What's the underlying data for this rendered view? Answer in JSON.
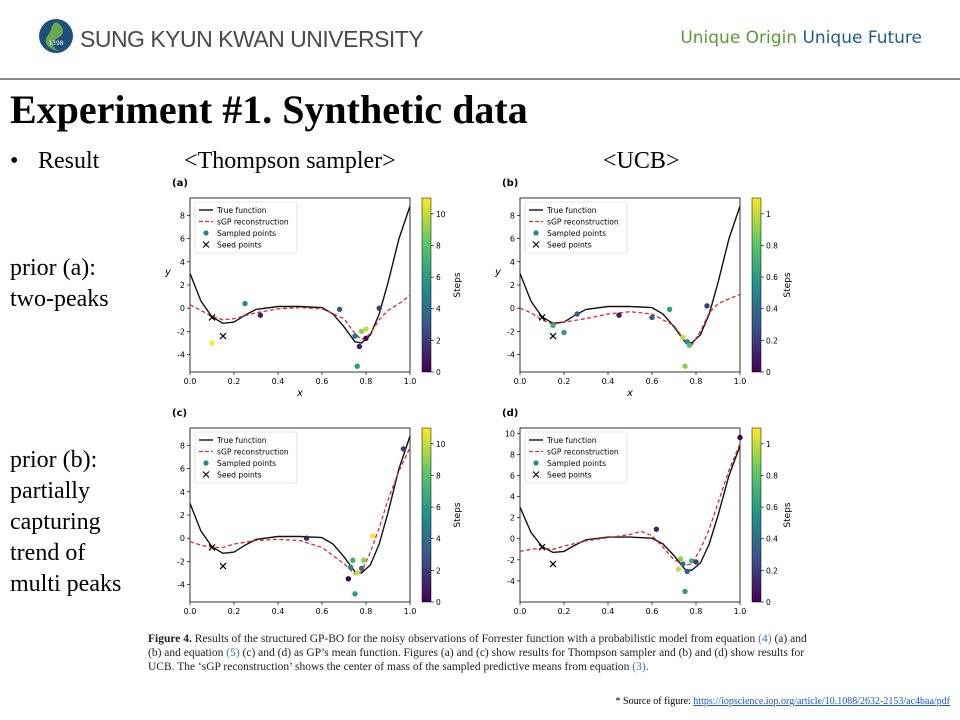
{
  "header": {
    "university": "SUNG KYUN KWAN UNIVERSITY",
    "logo_year": "1398",
    "slogan_1": "Unique Origin",
    "slogan_2": "Unique Future"
  },
  "title": "Experiment #1. Synthetic data",
  "bullet": "Result",
  "column_labels": {
    "left": "<Thompson sampler>",
    "right": "<UCB>"
  },
  "row_labels": {
    "a": [
      "prior (a):",
      "two-peaks"
    ],
    "b": [
      "prior (b):",
      "partially",
      "capturing",
      "trend of",
      "multi peaks"
    ]
  },
  "colors": {
    "true_fn": "#111111",
    "sgp": "#d03030",
    "seed": "#000000"
  },
  "chart_data": [
    {
      "type": "line",
      "panel": "(a)",
      "legend": [
        "True function",
        "sGP reconstruction",
        "Sampled points",
        "Seed points"
      ],
      "legend_placement": "top-left",
      "xlabel": "x",
      "ylabel": "y",
      "xlim": [
        0,
        1
      ],
      "ylim": [
        -5.5,
        9.5
      ],
      "xticks": [
        0.0,
        0.2,
        0.4,
        0.6,
        0.8,
        1.0
      ],
      "yticks": [
        -4,
        -2,
        0,
        2,
        4,
        6,
        8
      ],
      "colorbar": {
        "label": "Steps",
        "ticks": [
          0,
          2,
          4,
          6,
          8,
          10
        ],
        "max": 11
      },
      "true_function": [
        [
          0.0,
          3.0
        ],
        [
          0.05,
          0.6
        ],
        [
          0.1,
          -0.75
        ],
        [
          0.15,
          -1.3
        ],
        [
          0.2,
          -1.2
        ],
        [
          0.25,
          -0.6
        ],
        [
          0.3,
          -0.1
        ],
        [
          0.4,
          0.15
        ],
        [
          0.5,
          0.15
        ],
        [
          0.6,
          0.05
        ],
        [
          0.65,
          -0.5
        ],
        [
          0.7,
          -1.6
        ],
        [
          0.75,
          -2.9
        ],
        [
          0.78,
          -3.0
        ],
        [
          0.82,
          -2.3
        ],
        [
          0.86,
          -0.5
        ],
        [
          0.9,
          2.2
        ],
        [
          0.95,
          6.0
        ],
        [
          1.0,
          8.8
        ]
      ],
      "sgp": [
        [
          0.0,
          0.3
        ],
        [
          0.05,
          -0.2
        ],
        [
          0.1,
          -0.7
        ],
        [
          0.15,
          -1.0
        ],
        [
          0.2,
          -0.9
        ],
        [
          0.3,
          -0.4
        ],
        [
          0.4,
          -0.05
        ],
        [
          0.5,
          0.05
        ],
        [
          0.6,
          -0.05
        ],
        [
          0.7,
          -0.9
        ],
        [
          0.75,
          -2.2
        ],
        [
          0.78,
          -2.7
        ],
        [
          0.82,
          -2.2
        ],
        [
          0.86,
          -1.0
        ],
        [
          0.9,
          -0.2
        ],
        [
          0.95,
          0.4
        ],
        [
          1.0,
          1.1
        ]
      ],
      "sampled": [
        [
          0.25,
          0.4,
          5
        ],
        [
          0.32,
          -0.6,
          1
        ],
        [
          0.68,
          -0.1,
          3
        ],
        [
          0.75,
          -2.4,
          4
        ],
        [
          0.76,
          -5.0,
          6
        ],
        [
          0.77,
          -3.3,
          1
        ],
        [
          0.78,
          -2.0,
          9
        ],
        [
          0.8,
          -1.8,
          10
        ],
        [
          0.8,
          -2.6,
          0
        ],
        [
          0.86,
          0.0,
          2
        ],
        [
          0.1,
          -3.0,
          11
        ]
      ],
      "seed": [
        [
          0.1,
          -0.8
        ],
        [
          0.15,
          -2.4
        ]
      ]
    },
    {
      "type": "line",
      "panel": "(b)",
      "legend": [
        "True function",
        "sGP reconstruction",
        "Sampled points",
        "Seed points"
      ],
      "legend_placement": "top-left",
      "xlabel": "x",
      "ylabel": "y",
      "xlim": [
        0,
        1
      ],
      "ylim": [
        -5.5,
        9.5
      ],
      "xticks": [
        0.0,
        0.2,
        0.4,
        0.6,
        0.8,
        1.0
      ],
      "yticks": [
        -4,
        -2,
        0,
        2,
        4,
        6,
        8
      ],
      "colorbar": {
        "label": "Steps",
        "ticks": [
          0,
          0.2,
          0.4,
          0.6,
          0.8,
          1.0
        ],
        "max": 1.1
      },
      "true_function": [
        [
          0.0,
          3.0
        ],
        [
          0.05,
          0.6
        ],
        [
          0.1,
          -0.75
        ],
        [
          0.15,
          -1.3
        ],
        [
          0.2,
          -1.2
        ],
        [
          0.25,
          -0.6
        ],
        [
          0.3,
          -0.1
        ],
        [
          0.4,
          0.15
        ],
        [
          0.5,
          0.15
        ],
        [
          0.6,
          0.05
        ],
        [
          0.65,
          -0.5
        ],
        [
          0.7,
          -1.6
        ],
        [
          0.75,
          -2.9
        ],
        [
          0.78,
          -3.0
        ],
        [
          0.82,
          -2.3
        ],
        [
          0.86,
          -0.5
        ],
        [
          0.9,
          2.2
        ],
        [
          0.95,
          6.0
        ],
        [
          1.0,
          8.8
        ]
      ],
      "sgp": [
        [
          0.0,
          0.0
        ],
        [
          0.05,
          -0.4
        ],
        [
          0.1,
          -1.0
        ],
        [
          0.15,
          -1.4
        ],
        [
          0.2,
          -1.2
        ],
        [
          0.3,
          -0.9
        ],
        [
          0.4,
          -0.5
        ],
        [
          0.5,
          -0.3
        ],
        [
          0.6,
          -0.5
        ],
        [
          0.7,
          -1.5
        ],
        [
          0.75,
          -2.8
        ],
        [
          0.78,
          -3.2
        ],
        [
          0.82,
          -2.0
        ],
        [
          0.86,
          -0.4
        ],
        [
          0.9,
          0.4
        ],
        [
          0.95,
          0.8
        ],
        [
          1.0,
          1.2
        ]
      ],
      "sampled": [
        [
          0.15,
          -1.5,
          0.7
        ],
        [
          0.2,
          -2.1,
          0.6
        ],
        [
          0.26,
          -0.5,
          0.3
        ],
        [
          0.45,
          -0.6,
          0.1
        ],
        [
          0.6,
          -0.8,
          0.3
        ],
        [
          0.68,
          -0.1,
          0.6
        ],
        [
          0.74,
          -2.5,
          1.0
        ],
        [
          0.75,
          -5.0,
          0.9
        ],
        [
          0.76,
          -2.9,
          0.5
        ],
        [
          0.77,
          -3.2,
          0.8
        ],
        [
          0.85,
          0.2,
          0.2
        ]
      ],
      "seed": [
        [
          0.1,
          -0.8
        ],
        [
          0.15,
          -2.4
        ]
      ]
    },
    {
      "type": "line",
      "panel": "(c)",
      "legend": [
        "True function",
        "sGP reconstruction",
        "Sampled points",
        "Seed points"
      ],
      "legend_placement": "top-left",
      "xlabel": "",
      "ylabel": "",
      "xlim": [
        0,
        1
      ],
      "ylim": [
        -5.5,
        9.5
      ],
      "xticks": [
        0.0,
        0.2,
        0.4,
        0.6,
        0.8,
        1.0
      ],
      "yticks": [
        -4,
        -2,
        0,
        2,
        4,
        6,
        8
      ],
      "colorbar": {
        "label": "Steps",
        "ticks": [
          0,
          2,
          4,
          6,
          8,
          10
        ],
        "max": 11
      },
      "true_function": [
        [
          0.0,
          3.0
        ],
        [
          0.05,
          0.6
        ],
        [
          0.1,
          -0.75
        ],
        [
          0.15,
          -1.3
        ],
        [
          0.2,
          -1.2
        ],
        [
          0.25,
          -0.6
        ],
        [
          0.3,
          -0.1
        ],
        [
          0.4,
          0.15
        ],
        [
          0.5,
          0.15
        ],
        [
          0.6,
          0.05
        ],
        [
          0.65,
          -0.5
        ],
        [
          0.7,
          -1.6
        ],
        [
          0.75,
          -2.9
        ],
        [
          0.78,
          -3.0
        ],
        [
          0.82,
          -2.3
        ],
        [
          0.86,
          -0.5
        ],
        [
          0.9,
          2.2
        ],
        [
          0.95,
          6.0
        ],
        [
          1.0,
          8.8
        ]
      ],
      "sgp": [
        [
          0.0,
          -0.3
        ],
        [
          0.05,
          -0.6
        ],
        [
          0.1,
          -0.8
        ],
        [
          0.15,
          -0.8
        ],
        [
          0.2,
          -0.5
        ],
        [
          0.3,
          -0.2
        ],
        [
          0.4,
          -0.1
        ],
        [
          0.5,
          -0.2
        ],
        [
          0.6,
          -0.8
        ],
        [
          0.7,
          -2.2
        ],
        [
          0.75,
          -3.1
        ],
        [
          0.78,
          -2.9
        ],
        [
          0.82,
          -1.2
        ],
        [
          0.86,
          0.9
        ],
        [
          0.9,
          3.3
        ],
        [
          0.95,
          5.8
        ],
        [
          1.0,
          7.8
        ]
      ],
      "sampled": [
        [
          0.53,
          0.0,
          1
        ],
        [
          0.72,
          -3.5,
          0
        ],
        [
          0.73,
          -2.5,
          5
        ],
        [
          0.74,
          -1.9,
          7
        ],
        [
          0.75,
          -4.8,
          6
        ],
        [
          0.76,
          -3.0,
          10
        ],
        [
          0.78,
          -2.6,
          4
        ],
        [
          0.79,
          -1.9,
          9
        ],
        [
          0.83,
          0.2,
          11
        ],
        [
          0.97,
          7.7,
          2
        ]
      ],
      "seed": [
        [
          0.1,
          -0.8
        ],
        [
          0.15,
          -2.4
        ]
      ]
    },
    {
      "type": "line",
      "panel": "(d)",
      "legend": [
        "True function",
        "sGP reconstruction",
        "Sampled points",
        "Seed points"
      ],
      "legend_placement": "top-left",
      "xlabel": "",
      "ylabel": "",
      "xlim": [
        0,
        1
      ],
      "ylim": [
        -6,
        10.5
      ],
      "xticks": [
        0.0,
        0.2,
        0.4,
        0.6,
        0.8,
        1.0
      ],
      "yticks": [
        -4,
        -2,
        0,
        2,
        4,
        6,
        8,
        10
      ],
      "colorbar": {
        "label": "Steps",
        "ticks": [
          0,
          0.2,
          0.4,
          0.6,
          0.8,
          1.0
        ],
        "max": 1.1
      },
      "true_function": [
        [
          0.0,
          3.0
        ],
        [
          0.05,
          0.6
        ],
        [
          0.1,
          -0.75
        ],
        [
          0.15,
          -1.3
        ],
        [
          0.2,
          -1.2
        ],
        [
          0.25,
          -0.6
        ],
        [
          0.3,
          -0.1
        ],
        [
          0.4,
          0.15
        ],
        [
          0.5,
          0.15
        ],
        [
          0.6,
          0.05
        ],
        [
          0.65,
          -0.5
        ],
        [
          0.7,
          -1.6
        ],
        [
          0.75,
          -2.9
        ],
        [
          0.78,
          -3.0
        ],
        [
          0.82,
          -2.3
        ],
        [
          0.86,
          -0.5
        ],
        [
          0.9,
          2.2
        ],
        [
          0.95,
          6.0
        ],
        [
          1.0,
          8.8
        ]
      ],
      "sgp": [
        [
          0.0,
          -1.2
        ],
        [
          0.05,
          -1.0
        ],
        [
          0.1,
          -0.9
        ],
        [
          0.15,
          -1.0
        ],
        [
          0.2,
          -0.7
        ],
        [
          0.3,
          -0.2
        ],
        [
          0.4,
          0.1
        ],
        [
          0.5,
          0.4
        ],
        [
          0.55,
          0.7
        ],
        [
          0.6,
          0.3
        ],
        [
          0.65,
          -0.8
        ],
        [
          0.7,
          -2.0
        ],
        [
          0.75,
          -2.5
        ],
        [
          0.78,
          -2.4
        ],
        [
          0.82,
          -1.0
        ],
        [
          0.86,
          0.9
        ],
        [
          0.9,
          3.4
        ],
        [
          0.95,
          6.5
        ],
        [
          1.0,
          9.0
        ]
      ],
      "sampled": [
        [
          0.62,
          0.9,
          0.1
        ],
        [
          0.72,
          -2.9,
          1.0
        ],
        [
          0.73,
          -1.9,
          0.9
        ],
        [
          0.74,
          -2.4,
          0.4
        ],
        [
          0.75,
          -5.0,
          0.6
        ],
        [
          0.76,
          -3.1,
          0.3
        ],
        [
          0.78,
          -2.1,
          0.7
        ],
        [
          0.8,
          -2.2,
          0.2
        ],
        [
          1.0,
          9.6,
          0.0
        ]
      ],
      "seed": [
        [
          0.1,
          -0.8
        ],
        [
          0.15,
          -2.4
        ]
      ]
    }
  ],
  "caption": {
    "fig_label": "Figure 4.",
    "t1": " Results of the structured GP-BO for the noisy observations of Forrester function with a probabilistic model from equation ",
    "r1": "(4)",
    "t2": " (a) and (b) and equation ",
    "r2": "(5)",
    "t3": " (c) and (d) as GP’s mean function. Figures (a) and (c) show results for Thompson sampler and (b) and (d) show results for UCB. The ‘sGP reconstruction’ shows the center of mass of the sampled predictive means from equation ",
    "r3": "(3)",
    "t4": "."
  },
  "source": {
    "prefix": "* Source of figure: ",
    "url": "https://iopscience.iop.org/article/10.1088/2632-2153/ac4baa/pdf"
  }
}
